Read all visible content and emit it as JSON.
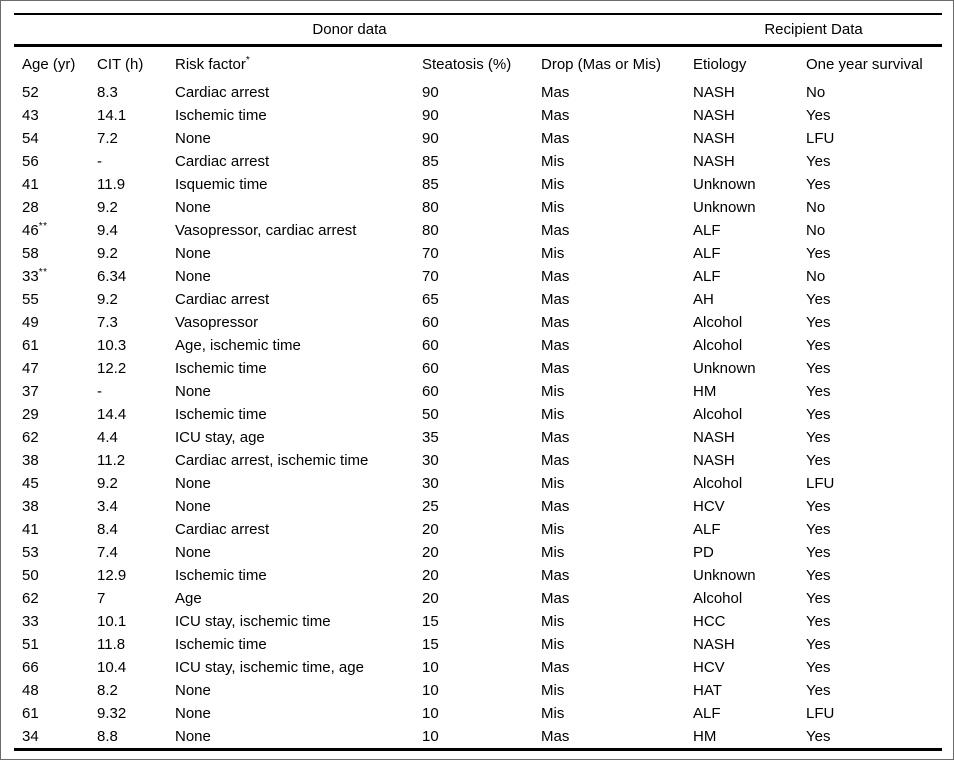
{
  "table": {
    "group_headers": [
      {
        "label": "Donor data",
        "colspan": 5
      },
      {
        "label": "Recipient Data",
        "colspan": 2
      }
    ],
    "columns": [
      {
        "key": "age",
        "label": "Age (yr)",
        "sup": ""
      },
      {
        "key": "cit",
        "label": "CIT (h)",
        "sup": ""
      },
      {
        "key": "risk_factor",
        "label": "Risk factor",
        "sup": "*"
      },
      {
        "key": "steatosis",
        "label": "Steatosis (%)",
        "sup": ""
      },
      {
        "key": "drop",
        "label": "Drop (Mas or Mis)",
        "sup": ""
      },
      {
        "key": "etiology",
        "label": "Etiology",
        "sup": ""
      },
      {
        "key": "survival",
        "label": "One year survival",
        "sup": ""
      }
    ],
    "rows": [
      {
        "age": "52",
        "age_sup": "",
        "cit": "8.3",
        "risk_factor": "Cardiac arrest",
        "steatosis": "90",
        "drop": "Mas",
        "etiology": "NASH",
        "survival": "No"
      },
      {
        "age": "43",
        "age_sup": "",
        "cit": "14.1",
        "risk_factor": "Ischemic time",
        "steatosis": "90",
        "drop": "Mas",
        "etiology": "NASH",
        "survival": "Yes"
      },
      {
        "age": "54",
        "age_sup": "",
        "cit": "7.2",
        "risk_factor": "None",
        "steatosis": "90",
        "drop": "Mas",
        "etiology": "NASH",
        "survival": "LFU"
      },
      {
        "age": "56",
        "age_sup": "",
        "cit": "-",
        "risk_factor": "Cardiac arrest",
        "steatosis": "85",
        "drop": "Mis",
        "etiology": "NASH",
        "survival": "Yes"
      },
      {
        "age": "41",
        "age_sup": "",
        "cit": "11.9",
        "risk_factor": "Isquemic time",
        "steatosis": "85",
        "drop": "Mis",
        "etiology": "Unknown",
        "survival": "Yes"
      },
      {
        "age": "28",
        "age_sup": "",
        "cit": "9.2",
        "risk_factor": "None",
        "steatosis": "80",
        "drop": "Mis",
        "etiology": "Unknown",
        "survival": "No"
      },
      {
        "age": "46",
        "age_sup": "**",
        "cit": "9.4",
        "risk_factor": "Vasopressor, cardiac arrest",
        "steatosis": "80",
        "drop": "Mas",
        "etiology": "ALF",
        "survival": "No"
      },
      {
        "age": "58",
        "age_sup": "",
        "cit": "9.2",
        "risk_factor": "None",
        "steatosis": "70",
        "drop": "Mis",
        "etiology": "ALF",
        "survival": "Yes"
      },
      {
        "age": "33",
        "age_sup": "**",
        "cit": "6.34",
        "risk_factor": "None",
        "steatosis": "70",
        "drop": "Mas",
        "etiology": "ALF",
        "survival": "No"
      },
      {
        "age": "55",
        "age_sup": "",
        "cit": "9.2",
        "risk_factor": "Cardiac arrest",
        "steatosis": "65",
        "drop": "Mas",
        "etiology": "AH",
        "survival": "Yes"
      },
      {
        "age": "49",
        "age_sup": "",
        "cit": "7.3",
        "risk_factor": "Vasopressor",
        "steatosis": "60",
        "drop": "Mas",
        "etiology": "Alcohol",
        "survival": "Yes"
      },
      {
        "age": "61",
        "age_sup": "",
        "cit": "10.3",
        "risk_factor": "Age, ischemic time",
        "steatosis": "60",
        "drop": "Mas",
        "etiology": "Alcohol",
        "survival": "Yes"
      },
      {
        "age": "47",
        "age_sup": "",
        "cit": "12.2",
        "risk_factor": "Ischemic time",
        "steatosis": "60",
        "drop": "Mas",
        "etiology": "Unknown",
        "survival": "Yes"
      },
      {
        "age": "37",
        "age_sup": "",
        "cit": "-",
        "risk_factor": "None",
        "steatosis": "60",
        "drop": "Mis",
        "etiology": "HM",
        "survival": "Yes"
      },
      {
        "age": "29",
        "age_sup": "",
        "cit": "14.4",
        "risk_factor": "Ischemic time",
        "steatosis": "50",
        "drop": "Mis",
        "etiology": "Alcohol",
        "survival": "Yes"
      },
      {
        "age": "62",
        "age_sup": "",
        "cit": "4.4",
        "risk_factor": "ICU stay, age",
        "steatosis": "35",
        "drop": "Mas",
        "etiology": "NASH",
        "survival": "Yes"
      },
      {
        "age": "38",
        "age_sup": "",
        "cit": "11.2",
        "risk_factor": "Cardiac arrest, ischemic time",
        "steatosis": "30",
        "drop": "Mas",
        "etiology": "NASH",
        "survival": "Yes"
      },
      {
        "age": "45",
        "age_sup": "",
        "cit": "9.2",
        "risk_factor": "None",
        "steatosis": "30",
        "drop": "Mis",
        "etiology": "Alcohol",
        "survival": "LFU"
      },
      {
        "age": "38",
        "age_sup": "",
        "cit": "3.4",
        "risk_factor": "None",
        "steatosis": "25",
        "drop": "Mas",
        "etiology": "HCV",
        "survival": "Yes"
      },
      {
        "age": "41",
        "age_sup": "",
        "cit": "8.4",
        "risk_factor": "Cardiac arrest",
        "steatosis": "20",
        "drop": "Mis",
        "etiology": "ALF",
        "survival": "Yes"
      },
      {
        "age": "53",
        "age_sup": "",
        "cit": "7.4",
        "risk_factor": "None",
        "steatosis": "20",
        "drop": "Mis",
        "etiology": "PD",
        "survival": "Yes"
      },
      {
        "age": "50",
        "age_sup": "",
        "cit": "12.9",
        "risk_factor": "Ischemic time",
        "steatosis": "20",
        "drop": "Mas",
        "etiology": "Unknown",
        "survival": "Yes"
      },
      {
        "age": "62",
        "age_sup": "",
        "cit": "7",
        "risk_factor": "Age",
        "steatosis": "20",
        "drop": "Mas",
        "etiology": "Alcohol",
        "survival": "Yes"
      },
      {
        "age": "33",
        "age_sup": "",
        "cit": "10.1",
        "risk_factor": "ICU stay, ischemic time",
        "steatosis": "15",
        "drop": "Mis",
        "etiology": "HCC",
        "survival": "Yes"
      },
      {
        "age": "51",
        "age_sup": "",
        "cit": "11.8",
        "risk_factor": "Ischemic time",
        "steatosis": "15",
        "drop": "Mis",
        "etiology": "NASH",
        "survival": "Yes"
      },
      {
        "age": "66",
        "age_sup": "",
        "cit": "10.4",
        "risk_factor": "ICU stay, ischemic time, age",
        "steatosis": "10",
        "drop": "Mas",
        "etiology": "HCV",
        "survival": "Yes"
      },
      {
        "age": "48",
        "age_sup": "",
        "cit": "8.2",
        "risk_factor": "None",
        "steatosis": "10",
        "drop": "Mis",
        "etiology": "HAT",
        "survival": "Yes"
      },
      {
        "age": "61",
        "age_sup": "",
        "cit": "9.32",
        "risk_factor": "None",
        "steatosis": "10",
        "drop": "Mis",
        "etiology": "ALF",
        "survival": "LFU"
      },
      {
        "age": "34",
        "age_sup": "",
        "cit": "8.8",
        "risk_factor": "None",
        "steatosis": "10",
        "drop": "Mas",
        "etiology": "HM",
        "survival": "Yes"
      }
    ]
  },
  "colors": {
    "text": "#000000",
    "rule": "#000000",
    "frame_border": "#6b6b6b",
    "background": "#ffffff"
  }
}
